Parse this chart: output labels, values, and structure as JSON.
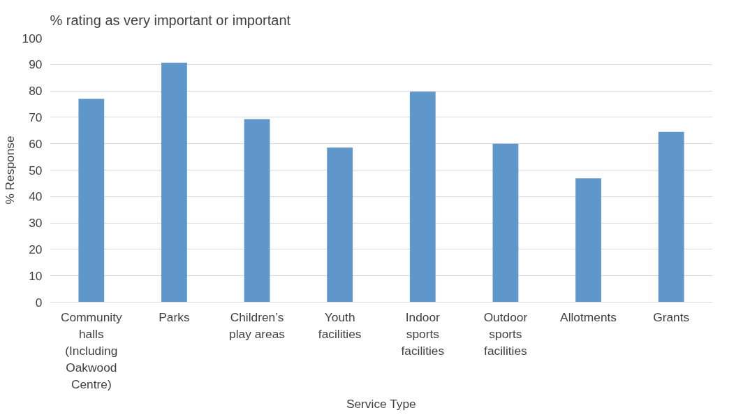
{
  "chart_data": {
    "type": "bar",
    "title": "% rating as very important or important",
    "xlabel": "Service Type",
    "ylabel": "% Response",
    "categories": [
      "Community halls (Including Oakwood Centre)",
      "Parks",
      "Children’s play areas",
      "Youth facilities",
      "Indoor sports facilities",
      "Outdoor sports facilities",
      "Allotments",
      "Grants"
    ],
    "values": [
      77,
      90.7,
      69.3,
      58.5,
      79.7,
      60,
      46.9,
      64.5
    ],
    "color": "#6097cb",
    "ylim": [
      0,
      100
    ],
    "yticks": [
      0,
      10,
      20,
      30,
      40,
      50,
      60,
      70,
      80,
      90,
      100
    ],
    "grid": "y"
  }
}
